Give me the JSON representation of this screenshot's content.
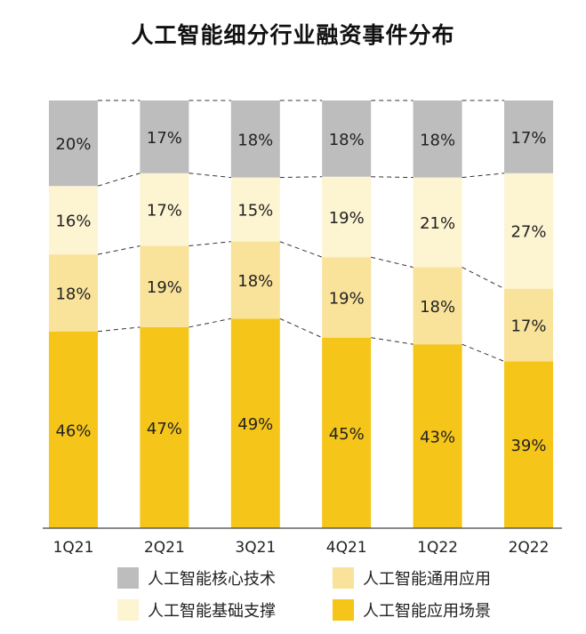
{
  "chart_data": {
    "type": "bar",
    "stacked": true,
    "percent": true,
    "title": "人工智能细分行业融资事件分布",
    "xlabel": "",
    "ylabel": "",
    "ylim": [
      0,
      100
    ],
    "categories": [
      "1Q21",
      "2Q21",
      "3Q21",
      "4Q21",
      "1Q22",
      "2Q22"
    ],
    "series": [
      {
        "name": "人工智能应用场景",
        "color": "#F5C519",
        "values": [
          46,
          47,
          49,
          45,
          43,
          39
        ],
        "labels": [
          "46%",
          "47%",
          "49%",
          "45%",
          "43%",
          "39%"
        ]
      },
      {
        "name": "人工智能通用应用",
        "color": "#F9E29A",
        "values": [
          18,
          19,
          18,
          19,
          18,
          17
        ],
        "labels": [
          "18%",
          "19%",
          "18%",
          "19%",
          "18%",
          "17%"
        ]
      },
      {
        "name": "人工智能基础支撑",
        "color": "#FDF4D2",
        "values": [
          16,
          17,
          15,
          19,
          21,
          27
        ],
        "labels": [
          "16%",
          "17%",
          "15%",
          "19%",
          "21%",
          "27%"
        ]
      },
      {
        "name": "人工智能核心技术",
        "color": "#BDBDBD",
        "values": [
          20,
          17,
          18,
          18,
          18,
          17
        ],
        "labels": [
          "20%",
          "17%",
          "18%",
          "18%",
          "18%",
          "17%"
        ]
      }
    ],
    "grid": false,
    "legend_position": "bottom",
    "connector_lines": "dashed"
  },
  "legend": [
    {
      "label": "人工智能核心技术",
      "color": "#BDBDBD"
    },
    {
      "label": "人工智能通用应用",
      "color": "#F9E29A"
    },
    {
      "label": "人工智能基础支撑",
      "color": "#FDF4D2"
    },
    {
      "label": "人工智能应用场景",
      "color": "#F5C519"
    }
  ]
}
